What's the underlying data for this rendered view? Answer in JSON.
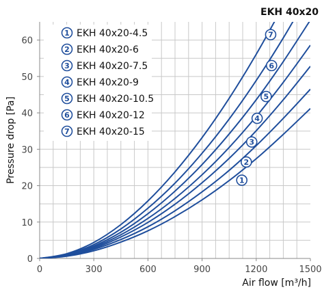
{
  "chart_data": {
    "type": "line",
    "title": "EKH 40x20",
    "xlabel": "Air flow [m³/h]",
    "ylabel": "Pressure drop [Pa]",
    "xlim": [
      0,
      1500
    ],
    "ylim": [
      0,
      65
    ],
    "x_ticks": [
      0,
      300,
      600,
      900,
      1200,
      1500
    ],
    "y_ticks": [
      0,
      10,
      20,
      30,
      40,
      50,
      60
    ],
    "grid": true,
    "legend": "top-left",
    "line_color": "#1f4e9c",
    "x": [
      0,
      150,
      300,
      450,
      600,
      750,
      900,
      1050,
      1200,
      1350,
      1500
    ],
    "series": [
      {
        "name": "EKH 40x20-4.5",
        "marker": "1",
        "values": [
          0,
          0.6,
          2.1,
          4.5,
          7.6,
          11.5,
          16.1,
          21.4,
          27.4,
          34.1,
          41.2
        ]
      },
      {
        "name": "EKH 40x20-6",
        "marker": "2",
        "values": [
          0,
          0.7,
          2.5,
          5.2,
          8.7,
          13.1,
          18.3,
          24.2,
          31.0,
          38.5,
          46.5
        ]
      },
      {
        "name": "EKH 40x20-7.5",
        "marker": "3",
        "values": [
          0,
          0.8,
          2.8,
          5.9,
          9.9,
          14.9,
          20.8,
          27.5,
          35.1,
          43.6,
          52.8
        ]
      },
      {
        "name": "EKH 40x20-9",
        "marker": "4",
        "values": [
          0,
          0.9,
          3.1,
          6.5,
          11.0,
          16.5,
          23.0,
          30.5,
          39.0,
          48.4,
          58.6
        ]
      },
      {
        "name": "EKH 40x20-10.5",
        "marker": "5",
        "values": [
          0,
          1.0,
          3.4,
          7.2,
          12.3,
          18.5,
          25.8,
          34.2,
          43.6,
          54.1,
          65.5
        ]
      },
      {
        "name": "EKH 40x20-12",
        "marker": "6",
        "values": [
          0,
          1.1,
          3.8,
          8.1,
          13.8,
          20.7,
          28.9,
          38.3,
          48.9,
          60.6,
          73.4
        ]
      },
      {
        "name": "EKH 40x20-15",
        "marker": "7",
        "values": [
          0,
          1.3,
          4.4,
          9.3,
          15.8,
          23.8,
          33.2,
          44.0,
          56.1,
          69.6,
          84.2
        ]
      }
    ],
    "curve_markers": [
      {
        "series": "EKH 40x20-4.5",
        "label": "1",
        "x": 1120,
        "y": 21.5
      },
      {
        "series": "EKH 40x20-6",
        "label": "2",
        "x": 1145,
        "y": 26.5
      },
      {
        "series": "EKH 40x20-7.5",
        "label": "3",
        "x": 1175,
        "y": 32.0
      },
      {
        "series": "EKH 40x20-9",
        "label": "4",
        "x": 1205,
        "y": 38.5
      },
      {
        "series": "EKH 40x20-10.5",
        "label": "5",
        "x": 1255,
        "y": 44.5
      },
      {
        "series": "EKH 40x20-12",
        "label": "6",
        "x": 1285,
        "y": 53.0
      },
      {
        "series": "EKH 40x20-15",
        "label": "7",
        "x": 1280,
        "y": 61.5
      }
    ]
  }
}
